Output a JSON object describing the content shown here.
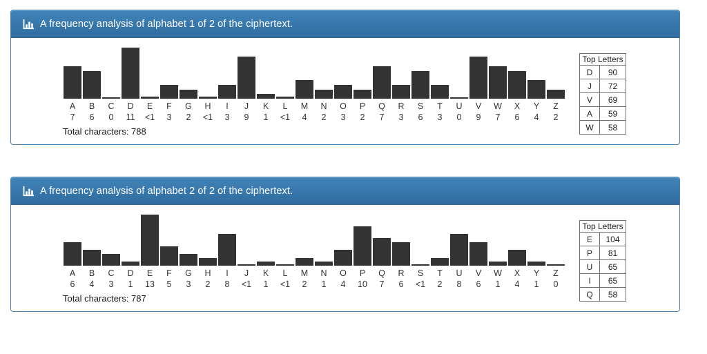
{
  "colors": {
    "header_gradient_top": "#4184b9",
    "header_gradient_bottom": "#306b9e",
    "panel_border": "#4583b5",
    "header_text": "#ffffff",
    "bar": "#333333",
    "table_border": "#6f6f6f",
    "text": "#333333"
  },
  "chart_data": [
    {
      "type": "bar",
      "icon": "bar-chart-icon",
      "title": "A frequency analysis of alphabet 1 of 2 of the ciphertext.",
      "categories": [
        "A",
        "B",
        "C",
        "D",
        "E",
        "F",
        "G",
        "H",
        "I",
        "J",
        "K",
        "L",
        "M",
        "N",
        "O",
        "P",
        "Q",
        "R",
        "S",
        "T",
        "U",
        "V",
        "W",
        "X",
        "Y",
        "Z"
      ],
      "values": [
        7,
        6,
        0,
        11,
        0.4,
        3,
        2,
        0.4,
        3,
        9,
        1,
        0.4,
        4,
        2,
        3,
        2,
        7,
        3,
        6,
        3,
        0,
        9,
        7,
        6,
        4,
        2
      ],
      "value_labels": [
        "7",
        "6",
        "0",
        "11",
        "<1",
        "3",
        "2",
        "<1",
        "3",
        "9",
        "1",
        "<1",
        "4",
        "2",
        "3",
        "2",
        "7",
        "3",
        "6",
        "3",
        "0",
        "9",
        "7",
        "6",
        "4",
        "2"
      ],
      "total_characters": 788,
      "total_characters_label": "Total characters: 788",
      "legend": false,
      "grid": false,
      "top_letters": {
        "title": "Top Letters",
        "rows": [
          {
            "letter": "D",
            "count": "90"
          },
          {
            "letter": "J",
            "count": "72"
          },
          {
            "letter": "V",
            "count": "69"
          },
          {
            "letter": "A",
            "count": "59"
          },
          {
            "letter": "W",
            "count": "58"
          }
        ]
      }
    },
    {
      "type": "bar",
      "icon": "bar-chart-icon",
      "title": "A frequency analysis of alphabet 2 of 2 of the ciphertext.",
      "categories": [
        "A",
        "B",
        "C",
        "D",
        "E",
        "F",
        "G",
        "H",
        "I",
        "J",
        "K",
        "L",
        "M",
        "N",
        "O",
        "P",
        "Q",
        "R",
        "S",
        "T",
        "U",
        "V",
        "W",
        "X",
        "Y",
        "Z"
      ],
      "values": [
        6,
        4,
        3,
        1,
        13,
        5,
        3,
        2,
        8,
        0.4,
        1,
        0.4,
        2,
        1,
        4,
        10,
        7,
        6,
        0.4,
        2,
        8,
        6,
        1,
        4,
        1,
        0
      ],
      "value_labels": [
        "6",
        "4",
        "3",
        "1",
        "13",
        "5",
        "3",
        "2",
        "8",
        "<1",
        "1",
        "<1",
        "2",
        "1",
        "4",
        "10",
        "7",
        "6",
        "<1",
        "2",
        "8",
        "6",
        "1",
        "4",
        "1",
        "0"
      ],
      "total_characters": 787,
      "total_characters_label": "Total characters: 787",
      "legend": false,
      "grid": false,
      "top_letters": {
        "title": "Top Letters",
        "rows": [
          {
            "letter": "E",
            "count": "104"
          },
          {
            "letter": "P",
            "count": "81"
          },
          {
            "letter": "U",
            "count": "65"
          },
          {
            "letter": "I",
            "count": "65"
          },
          {
            "letter": "Q",
            "count": "58"
          }
        ]
      }
    }
  ]
}
